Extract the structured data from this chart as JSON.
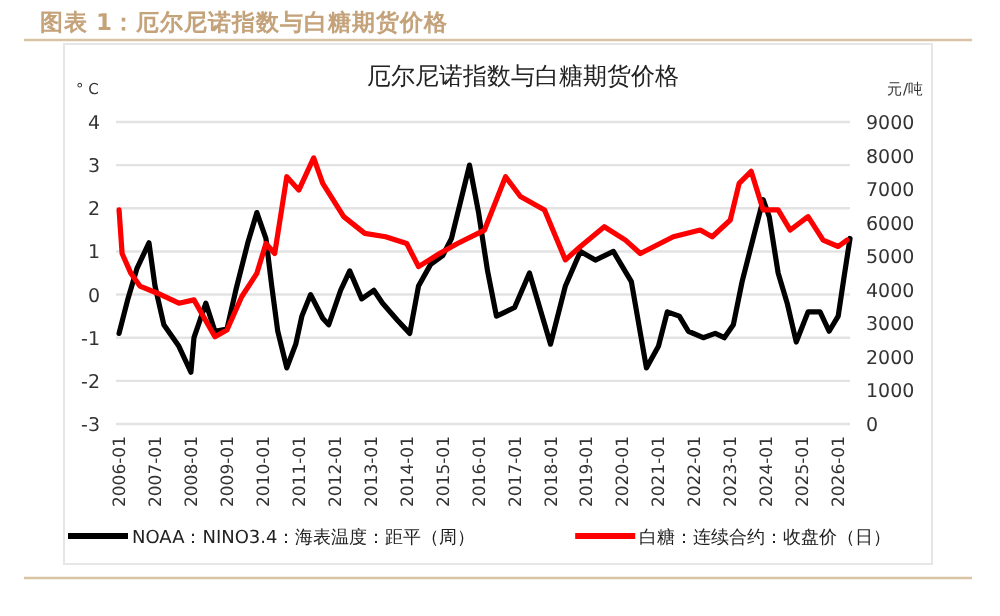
{
  "chart_data": {
    "type": "line",
    "title": "厄尔尼诺指数与白糖期货价格",
    "annotations": [
      "图表 1：厄尔尼诺指数与白糖期货价格"
    ],
    "ylabel": "° C",
    "y2label": "元/吨",
    "xlim": [
      "2005-12",
      "2026-05"
    ],
    "xticks": [
      "2006-01",
      "2007-01",
      "2008-01",
      "2009-01",
      "2010-01",
      "2011-01",
      "2012-01",
      "2013-01",
      "2014-01",
      "2015-01",
      "2016-01",
      "2017-01",
      "2018-01",
      "2019-01",
      "2020-01",
      "2021-01",
      "2022-01",
      "2023-01",
      "2024-01",
      "2025-01",
      "2026-01"
    ],
    "ylim": [
      -3,
      4
    ],
    "yticks": [
      -3,
      -2,
      -1,
      0,
      1,
      2,
      3,
      4
    ],
    "y2lim": [
      0,
      9000
    ],
    "y2ticks": [
      0,
      1000,
      2000,
      3000,
      4000,
      5000,
      6000,
      7000,
      8000,
      9000
    ],
    "grid": "y",
    "legend": "bottom",
    "series": [
      {
        "name": "NOAA：NINO3.4：海表温度：距平（周）",
        "color": "#000000",
        "x": [
          "2006-01",
          "2006-04",
          "2006-07",
          "2006-11",
          "2007-01",
          "2007-04",
          "2007-09",
          "2008-01",
          "2008-02",
          "2008-06",
          "2008-09",
          "2009-01",
          "2009-04",
          "2009-08",
          "2009-11",
          "2010-02",
          "2010-04",
          "2010-06",
          "2010-09",
          "2010-12",
          "2011-02",
          "2011-05",
          "2011-09",
          "2011-11",
          "2012-03",
          "2012-06",
          "2012-10",
          "2013-02",
          "2013-05",
          "2013-10",
          "2014-02",
          "2014-05",
          "2014-09",
          "2015-01",
          "2015-04",
          "2015-10",
          "2016-01",
          "2016-04",
          "2016-07",
          "2016-10",
          "2017-01",
          "2017-06",
          "2018-01",
          "2018-06",
          "2018-11",
          "2019-04",
          "2019-10",
          "2020-04",
          "2020-09",
          "2021-01",
          "2021-04",
          "2021-08",
          "2021-11",
          "2022-04",
          "2022-08",
          "2022-11",
          "2023-02",
          "2023-05",
          "2023-09",
          "2023-12",
          "2024-02",
          "2024-05",
          "2024-08",
          "2024-11",
          "2025-03",
          "2025-07",
          "2025-10",
          "2026-01",
          "2026-03",
          "2026-05"
        ],
        "values": [
          -0.9,
          -0.1,
          0.6,
          1.2,
          0.2,
          -0.7,
          -1.2,
          -1.8,
          -1.0,
          -0.2,
          -0.85,
          -0.8,
          0.1,
          1.2,
          1.9,
          1.3,
          0.2,
          -0.85,
          -1.7,
          -1.15,
          -0.5,
          0,
          -0.55,
          -0.7,
          0.1,
          0.55,
          -0.1,
          0.1,
          -0.2,
          -0.6,
          -0.9,
          0.2,
          0.7,
          0.9,
          1.3,
          3.0,
          1.9,
          0.55,
          -0.5,
          -0.4,
          -0.3,
          0.5,
          -1.15,
          0.2,
          1.0,
          0.8,
          1.0,
          0.3,
          -1.7,
          -1.2,
          -0.4,
          -0.5,
          -0.85,
          -1.0,
          -0.9,
          -1.0,
          -0.7,
          0.3,
          1.4,
          2.2,
          1.8,
          0.5,
          -0.2,
          -1.1,
          -0.4,
          -0.4,
          -0.85,
          -0.5,
          0.4,
          1.3
        ]
      },
      {
        "name": "白糖：连续合约：收盘价（日）",
        "color": "#ff0000",
        "axis": "y2",
        "x": [
          "2006-01",
          "2006-02",
          "2006-05",
          "2006-08",
          "2007-02",
          "2007-09",
          "2008-02",
          "2008-09",
          "2009-01",
          "2009-06",
          "2009-11",
          "2010-02",
          "2010-05",
          "2010-09",
          "2011-01",
          "2011-06",
          "2011-09",
          "2012-04",
          "2012-11",
          "2013-06",
          "2014-01",
          "2014-05",
          "2014-12",
          "2015-06",
          "2016-03",
          "2016-10",
          "2017-03",
          "2017-11",
          "2018-06",
          "2018-11",
          "2019-07",
          "2020-02",
          "2020-07",
          "2021-06",
          "2022-03",
          "2022-07",
          "2023-01",
          "2023-04",
          "2023-08",
          "2023-12",
          "2024-05",
          "2024-09",
          "2025-03",
          "2025-08",
          "2026-01",
          "2026-04"
        ],
        "values": [
          6380,
          5080,
          4490,
          4110,
          3890,
          3600,
          3700,
          2600,
          2800,
          3800,
          4490,
          5380,
          5080,
          7370,
          6970,
          7930,
          7170,
          6180,
          5680,
          5580,
          5380,
          4690,
          5080,
          5380,
          5780,
          7370,
          6780,
          6380,
          4890,
          5290,
          5880,
          5480,
          5080,
          5580,
          5780,
          5580,
          6080,
          7170,
          7530,
          6380,
          6380,
          5780,
          6180,
          5480,
          5290,
          5480
        ]
      }
    ]
  }
}
